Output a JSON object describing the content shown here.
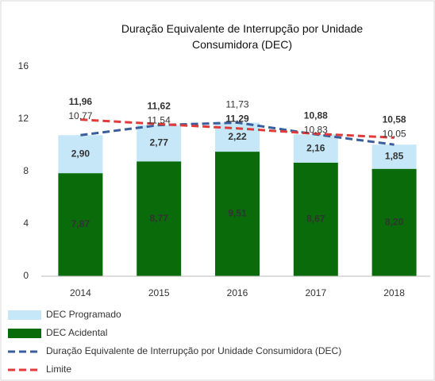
{
  "chart_data": {
    "type": "bar",
    "stacked": true,
    "title": "Duração Equivalente de Interrupção por Unidade Consumidora (DEC)",
    "categories": [
      "2014",
      "2015",
      "2016",
      "2017",
      "2018"
    ],
    "series": [
      {
        "name": "DEC Programado",
        "type": "bar",
        "color": "#c6e7f8",
        "values": [
          2.9,
          2.77,
          2.22,
          2.16,
          1.85
        ],
        "value_labels": [
          "2,90",
          "2,77",
          "2,22",
          "2,16",
          "1,85"
        ]
      },
      {
        "name": "DEC Acidental",
        "type": "bar",
        "color": "#0a6b0a",
        "values": [
          7.87,
          8.77,
          9.51,
          8.67,
          8.2
        ],
        "value_labels": [
          "7,87",
          "8,77",
          "9,51",
          "8,67",
          "8,20"
        ]
      },
      {
        "name": "Duração Equivalente de Interrupção por Unidade Consumidora (DEC)",
        "type": "line",
        "color": "#3a5d9c",
        "values": [
          10.77,
          11.54,
          11.73,
          10.83,
          10.05
        ],
        "value_labels": [
          "10,77",
          "11,54",
          "11,73",
          "10,83",
          "10,05"
        ]
      },
      {
        "name": "Limite",
        "type": "line",
        "color": "#e23a3a",
        "values": [
          11.96,
          11.62,
          11.29,
          10.88,
          10.58
        ],
        "value_labels": [
          "11,96",
          "11,62",
          "11,29",
          "10,88",
          "10,58"
        ]
      }
    ],
    "ylim": [
      0,
      16
    ],
    "yticks": [
      0,
      4,
      8,
      12,
      16
    ],
    "grid": false
  }
}
